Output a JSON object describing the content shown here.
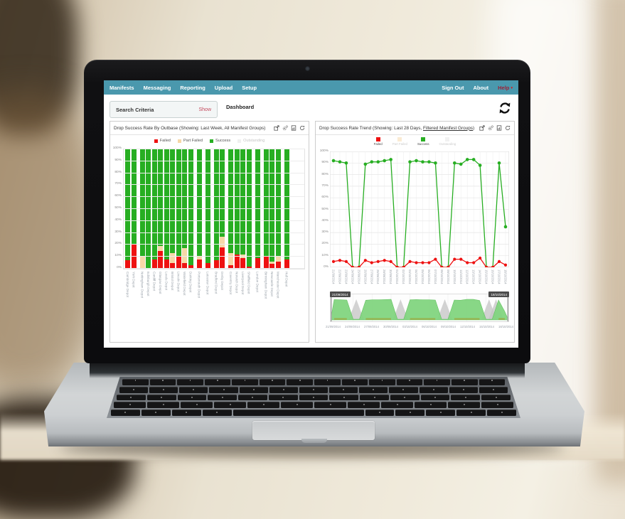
{
  "navbar": {
    "left_items": [
      "Manifests",
      "Messaging",
      "Reporting",
      "Upload",
      "Setup"
    ],
    "right_items": [
      "About",
      "Sign Out"
    ],
    "help_label": "Help",
    "background_color": "#4a98ad",
    "help_color": "#9c2238"
  },
  "toolbar": {
    "search_criteria_label": "Search Criteria",
    "show_label": "Show",
    "page_title": "Dashboard"
  },
  "panel_icons": [
    "open-in-new-window",
    "settings-cogs",
    "export-image",
    "refresh"
  ],
  "colors": {
    "failed": "#ee1111",
    "part_failed": "#f6d8a8",
    "success": "#27ae22",
    "outstanding": "#e4e4e4",
    "navigator_area": "#82d580",
    "navigator_alt": "#c7c7c7"
  },
  "chart_data": [
    {
      "type": "bar",
      "stacked": true,
      "title": "Drop Success Rate By Outbase (Showing: Last Week, All Manifest Groups)",
      "ylabel": "",
      "xlabel": "",
      "ylim": [
        0,
        100
      ],
      "ytick_step": 10,
      "ytick_suffix": "%",
      "legend": [
        {
          "label": "Failed",
          "color": "#ee1111",
          "active": true
        },
        {
          "label": "Part Failed",
          "color": "#f6d8a8",
          "active": true
        },
        {
          "label": "Success",
          "color": "#27ae22",
          "active": true
        },
        {
          "label": "Outstanding",
          "color": "#e4e4e4",
          "active": false
        }
      ],
      "groups": [
        {
          "bars": [
            {
              "label": "Cambridge Depot",
              "failed": 7,
              "part_failed": 0,
              "success": 93
            },
            {
              "label": "York Depot",
              "failed": 20,
              "part_failed": 0,
              "success": 80
            }
          ]
        },
        {
          "bars": [
            {
              "label": "Nottingham Depot",
              "failed": 0,
              "part_failed": 10,
              "success": 90
            },
            {
              "label": "Edinburgh Depot",
              "failed": 0,
              "part_failed": 0,
              "success": 100
            },
            {
              "label": "Cardiff Depot",
              "failed": 8,
              "part_failed": 0,
              "success": 92
            },
            {
              "label": "Glasgow Depot",
              "failed": 15,
              "part_failed": 4,
              "success": 81
            },
            {
              "label": "Leeds Depot",
              "failed": 8,
              "part_failed": 0,
              "success": 92
            },
            {
              "label": "Bristol Depot",
              "failed": 5,
              "part_failed": 8,
              "success": 87
            },
            {
              "label": "Lincoln Depot",
              "failed": 11,
              "part_failed": 0,
              "success": 89
            },
            {
              "label": "Wakefield Depot",
              "failed": 5,
              "part_failed": 12,
              "success": 83
            },
            {
              "label": "Dorking Depot",
              "failed": 3,
              "part_failed": 0,
              "success": 97
            }
          ]
        },
        {
          "bars": [
            {
              "label": "Portsmouth Depot",
              "failed": 8,
              "part_failed": 3,
              "success": 89
            }
          ]
        },
        {
          "bars": [
            {
              "label": "Leicester Depot",
              "failed": 5,
              "part_failed": 0,
              "success": 95
            }
          ]
        },
        {
          "bars": [
            {
              "label": "Bradford Depot",
              "failed": 7,
              "part_failed": 0,
              "success": 93
            },
            {
              "label": "Derby Depot",
              "failed": 18,
              "part_failed": 9,
              "success": 73
            }
          ]
        },
        {
          "bars": [
            {
              "label": "Coventry Depot",
              "failed": 3,
              "part_failed": 10,
              "success": 87
            },
            {
              "label": "Norwich Depot",
              "failed": 12,
              "part_failed": 0,
              "success": 88
            },
            {
              "label": "Liverpool Depot",
              "failed": 9,
              "part_failed": 3,
              "success": 88
            },
            {
              "label": "Sheffield Depot",
              "failed": 2,
              "part_failed": 0,
              "success": 98
            }
          ]
        },
        {
          "bars": [
            {
              "label": "London Depot",
              "failed": 9,
              "part_failed": 0,
              "success": 91
            }
          ]
        },
        {
          "bars": [
            {
              "label": "Birmingham Depot",
              "failed": 10,
              "part_failed": 0,
              "success": 90
            },
            {
              "label": "Newcastle Depot",
              "failed": 4,
              "part_failed": 2,
              "success": 94
            },
            {
              "label": "Manchester Depot",
              "failed": 6,
              "part_failed": 4,
              "success": 90
            }
          ]
        },
        {
          "bars": [
            {
              "label": "Hull Depot",
              "failed": 8,
              "part_failed": 0,
              "success": 92
            }
          ]
        }
      ]
    },
    {
      "type": "line",
      "title_prefix": "Drop Success Rate Trend (Showing: Last 28 Days, ",
      "title_link": "Filtered Manifest Groups",
      "title_suffix": ")",
      "ylim": [
        0,
        100
      ],
      "ytick_step": 10,
      "ytick_suffix": "%",
      "grid": true,
      "legend": [
        {
          "label": "Failed",
          "color": "#ee1111",
          "active": true
        },
        {
          "label": "Part Failed",
          "color": "#f6d8a8",
          "active": false
        },
        {
          "label": "Success",
          "color": "#27ae22",
          "active": true
        },
        {
          "label": "Outstanding",
          "color": "#e4e4e4",
          "active": false
        }
      ],
      "x": [
        "21/09/2014",
        "22/09/2014",
        "23/09/2014",
        "24/09/2014",
        "25/09/2014",
        "26/09/2014",
        "27/09/2014",
        "28/09/2014",
        "29/09/2014",
        "30/09/2014",
        "01/10/2014",
        "02/10/2014",
        "03/10/2014",
        "04/10/2014",
        "05/10/2014",
        "06/10/2014",
        "07/10/2014",
        "08/10/2014",
        "09/10/2014",
        "10/10/2014",
        "11/10/2014",
        "12/10/2014",
        "13/10/2014",
        "14/10/2014",
        "15/10/2014",
        "16/10/2014",
        "17/10/2014",
        "18/10/2014"
      ],
      "series": [
        {
          "name": "Success",
          "color": "#27ae22",
          "values": [
            92,
            91,
            90,
            0,
            0,
            89,
            91,
            91,
            92,
            93,
            0,
            0,
            91,
            92,
            91,
            91,
            90,
            0,
            0,
            90,
            89,
            93,
            93,
            88,
            0,
            0,
            90,
            35
          ]
        },
        {
          "name": "Failed",
          "color": "#ee1111",
          "values": [
            5,
            6,
            5,
            0,
            0,
            6,
            4,
            5,
            6,
            5,
            0,
            0,
            5,
            4,
            4,
            4,
            7,
            0,
            0,
            7,
            7,
            4,
            4,
            8,
            0,
            0,
            5,
            2
          ]
        }
      ],
      "navigator": {
        "start_label": "21/09/2014",
        "end_label": "18/10/2014",
        "tick_labels": [
          "21/09/2014",
          "24/09/2014",
          "27/09/2014",
          "30/09/2014",
          "03/10/2014",
          "06/10/2014",
          "09/10/2014",
          "12/10/2014",
          "15/10/2014",
          "18/10/2014"
        ]
      }
    }
  ]
}
